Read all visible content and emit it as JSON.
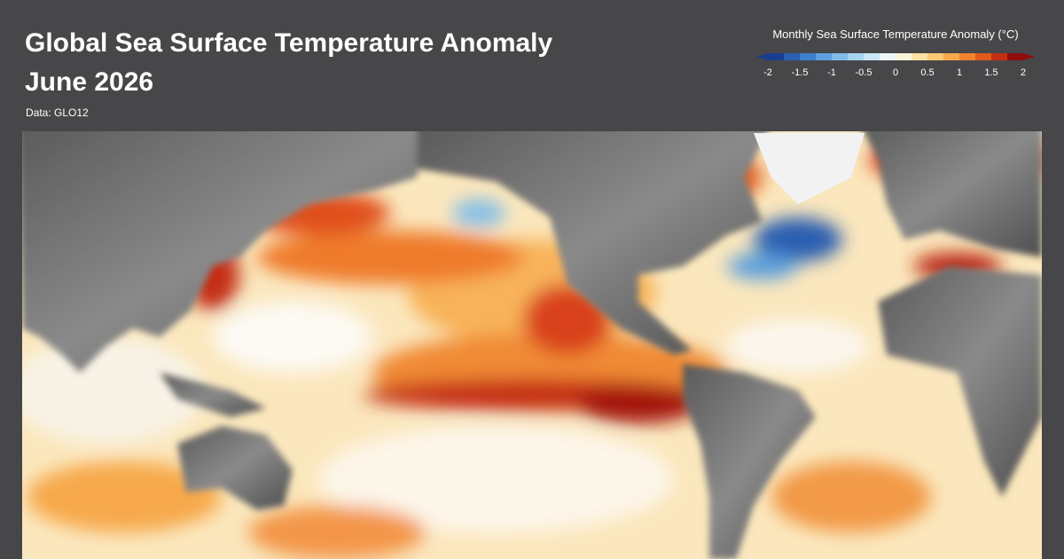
{
  "header": {
    "title": "Global Sea Surface Temperature Anomaly",
    "subtitle": "June 2026",
    "source": "Data: GLO12"
  },
  "legend": {
    "title": "Monthly Sea Surface Temperature Anomaly (°C)",
    "lim": [
      -2,
      2
    ],
    "ticks": [
      -2,
      -1.5,
      -1,
      -0.5,
      0,
      0.5,
      1,
      1.5,
      2
    ],
    "colors": [
      "#1a3d8f",
      "#2a5fb0",
      "#3d7fcc",
      "#5c9fdc",
      "#80bde8",
      "#a6d4f0",
      "#c9e6f5",
      "#eef6f9",
      "#fdf4dc",
      "#fde2a4",
      "#fcc974",
      "#f7a94c",
      "#ef842c",
      "#e05a1a",
      "#c42f12",
      "#8f0d0d"
    ]
  }
}
